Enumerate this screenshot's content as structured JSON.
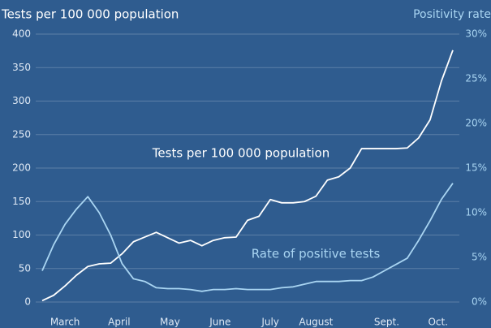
{
  "chart_data": {
    "type": "line",
    "y_label": "Tests per 100 000 population",
    "y2_label": "Positivity rate",
    "annotations": [
      "Tests per 100 000 population",
      "Rate of positive tests"
    ],
    "x": [
      0,
      1,
      2,
      3,
      4,
      5,
      6,
      7,
      8,
      9,
      10,
      11,
      12,
      13,
      14,
      15,
      16,
      17,
      18,
      19,
      20,
      21,
      22,
      23,
      24,
      25,
      26,
      27,
      28,
      29,
      30,
      31,
      32,
      33,
      34,
      35,
      36
    ],
    "xlim": [
      0,
      36
    ],
    "xticks": [
      {
        "value": 2,
        "label": "March"
      },
      {
        "value": 6.75,
        "label": "April"
      },
      {
        "value": 11.2,
        "label": "May"
      },
      {
        "value": 15.6,
        "label": "June"
      },
      {
        "value": 20,
        "label": "July"
      },
      {
        "value": 24,
        "label": "August"
      },
      {
        "value": 30.2,
        "label": "Sept."
      },
      {
        "value": 34.7,
        "label": "Oct."
      }
    ],
    "ylim": [
      0,
      400
    ],
    "yticks": [
      0,
      50,
      100,
      150,
      200,
      250,
      300,
      350,
      400
    ],
    "y2lim": [
      0,
      30
    ],
    "y2ticks": [
      {
        "value": 0,
        "label": "0%"
      },
      {
        "value": 5,
        "label": "5%"
      },
      {
        "value": 10,
        "label": "10%"
      },
      {
        "value": 15,
        "label": "15%"
      },
      {
        "value": 20,
        "label": "20%"
      },
      {
        "value": 25,
        "label": "25%"
      },
      {
        "value": 30,
        "label": "30%"
      }
    ],
    "grid": true,
    "series": [
      {
        "name": "Tests per 100 000 population",
        "color": "#ffffff",
        "axis": "y",
        "values": [
          2,
          10,
          24,
          40,
          53,
          57,
          58,
          72,
          90,
          97,
          104,
          96,
          88,
          92,
          84,
          92,
          96,
          97,
          122,
          128,
          153,
          148,
          148,
          150,
          158,
          182,
          187,
          200,
          229,
          229,
          229,
          229,
          230,
          245,
          272,
          330,
          376
        ]
      },
      {
        "name": "Rate of positive tests",
        "color": "#a9d5f2",
        "axis": "y2",
        "values": [
          3.5,
          6.4,
          8.7,
          10.4,
          11.8,
          10.0,
          7.5,
          4.3,
          2.6,
          2.3,
          1.6,
          1.5,
          1.5,
          1.4,
          1.2,
          1.4,
          1.4,
          1.5,
          1.4,
          1.4,
          1.4,
          1.6,
          1.7,
          2.0,
          2.3,
          2.3,
          2.3,
          2.4,
          2.4,
          2.8,
          3.5,
          4.2,
          4.9,
          6.9,
          9.1,
          11.5,
          13.3
        ]
      }
    ]
  }
}
